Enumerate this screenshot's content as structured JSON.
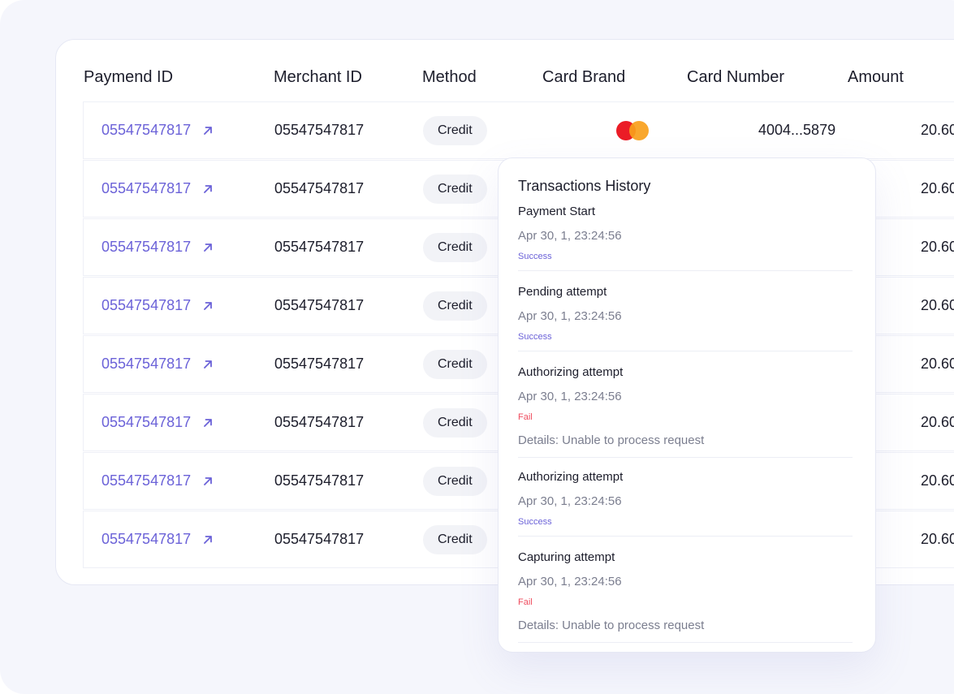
{
  "table": {
    "headers": [
      "Paymend ID",
      "Merchant ID",
      "Method",
      "Card Brand",
      "Card Number",
      "Amount"
    ],
    "rows": [
      {
        "payment_id": "05547547817",
        "merchant_id": "05547547817",
        "method": "Credit",
        "card_brand": "mastercard",
        "card_number": "4004...5879",
        "amount": "20.60"
      },
      {
        "payment_id": "05547547817",
        "merchant_id": "05547547817",
        "method": "Credit",
        "amount": "20.60"
      },
      {
        "payment_id": "05547547817",
        "merchant_id": "05547547817",
        "method": "Credit",
        "amount": "20.60"
      },
      {
        "payment_id": "05547547817",
        "merchant_id": "05547547817",
        "method": "Credit",
        "amount": "20.60"
      },
      {
        "payment_id": "05547547817",
        "merchant_id": "05547547817",
        "method": "Credit",
        "amount": "20.60"
      },
      {
        "payment_id": "05547547817",
        "merchant_id": "05547547817",
        "method": "Credit",
        "amount": "20.60"
      },
      {
        "payment_id": "05547547817",
        "merchant_id": "05547547817",
        "method": "Credit",
        "amount": "20.60"
      },
      {
        "payment_id": "05547547817",
        "merchant_id": "05547547817",
        "method": "Credit",
        "amount": "20.60"
      }
    ]
  },
  "history": {
    "title": "Transactions History",
    "entries": [
      {
        "name": "Payment Start",
        "time": "Apr 30, 1, 23:24:56",
        "status": "Success"
      },
      {
        "name": "Pending attempt",
        "time": "Apr 30, 1, 23:24:56",
        "status": "Success"
      },
      {
        "name": "Authorizing attempt",
        "time": "Apr 30, 1, 23:24:56",
        "status": "Fail",
        "details": "Details: Unable to process request"
      },
      {
        "name": "Authorizing attempt",
        "time": "Apr 30, 1, 23:24:56",
        "status": "Success"
      },
      {
        "name": "Capturing attempt",
        "time": "Apr 30, 1, 23:24:56",
        "status": "Fail",
        "details": "Details: Unable to process request"
      }
    ]
  },
  "colors": {
    "accent": "#6b62d8",
    "fail": "#ef4d5f",
    "mastercard_red": "#eb1c26",
    "mastercard_orange": "#f99f1b"
  },
  "icons": {
    "payment_link": "arrow-up-right-icon",
    "card_brand": "mastercard-logo-icon"
  }
}
